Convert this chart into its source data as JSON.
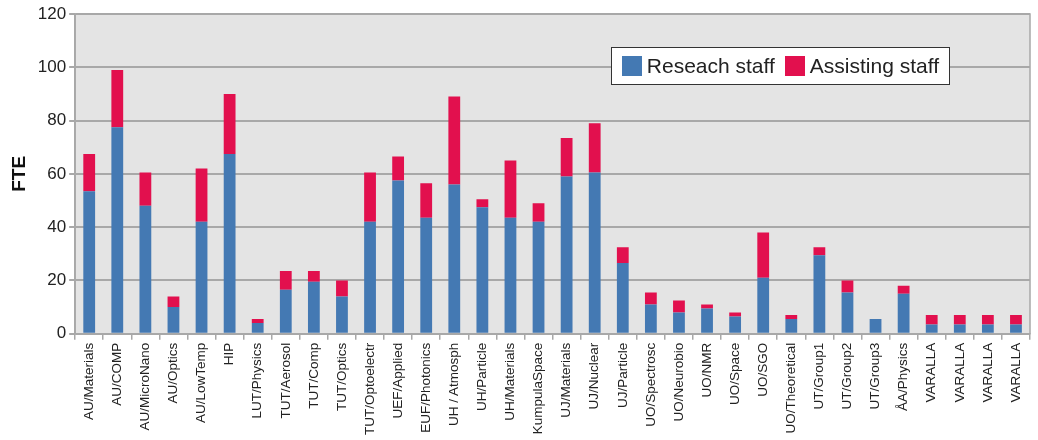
{
  "chart_data": {
    "type": "bar",
    "stacked": true,
    "ylabel": "FTE",
    "categories": [
      "AU/Materials",
      "AU/COMP",
      "AU/MicroNano",
      "AU/Optics",
      "AU/LowTemp",
      "HIP",
      "LUT/Physics",
      "TUT/Aerosol",
      "TUT/Comp",
      "TUT/Optics",
      "TUT/Optoelectr",
      "UEF/Applied",
      "EUF/Photonics",
      "UH / Atmosph",
      "UH/Particle",
      "UH/Materials",
      "KumpulaSpace",
      "UJ/Materials",
      "UJ/Nuclear",
      "UJ/Particle",
      "UO/Spectrosc",
      "UO/Neurobio",
      "UO/NMR",
      "UO/Space",
      "UO/SGO",
      "UO/Theoretical",
      "UT/Group1",
      "UT/Group2",
      "UT/Group3",
      "ÅA/Physics",
      "VARALLA",
      "VARALLA",
      "VARALLA",
      "VARALLA"
    ],
    "series": [
      {
        "name": "Reseach staff",
        "color": "#4479b3",
        "values": [
          53.5,
          77.5,
          48,
          10,
          42,
          67.5,
          4,
          16.5,
          19.5,
          14,
          42,
          57.5,
          43.5,
          56,
          47.5,
          43.5,
          42,
          59,
          60.5,
          26.5,
          11,
          8,
          9.5,
          6.5,
          21,
          5.5,
          29.5,
          15.5,
          5.5,
          15,
          3.5,
          3.5,
          3.5,
          3.5
        ]
      },
      {
        "name": "Assisting staff",
        "color": "#e2104e",
        "values": [
          14,
          21.5,
          12.5,
          4,
          20,
          22.5,
          1.5,
          7,
          4,
          6,
          18.5,
          9,
          13,
          33,
          3,
          21.5,
          7,
          14.5,
          18.5,
          6,
          4.5,
          4.5,
          1.5,
          1.5,
          17,
          1.5,
          3,
          4.5,
          0,
          3,
          3.5,
          3.5,
          3.5,
          3.5
        ]
      }
    ],
    "ylim": [
      0,
      120
    ],
    "yticks": [
      0,
      20,
      40,
      60,
      80,
      100,
      120
    ],
    "grid": "y",
    "legend": "top right"
  }
}
